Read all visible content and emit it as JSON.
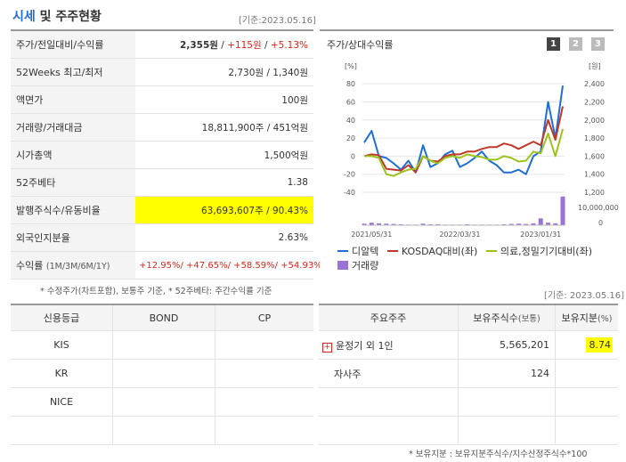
{
  "header": {
    "title_accent": "시세",
    "title_rest": " 및 주주현황",
    "date": "[기준:2023.05.16]"
  },
  "info": {
    "price_label": "주가/전일대비/수익률",
    "price": "2,355원",
    "sep1": " / ",
    "change": "+115원",
    "sep2": " / ",
    "change_rate": "+5.13%",
    "w52_label": "52Weeks 최고/최저",
    "w52_value": "2,730원 / 1,340원",
    "par_label": "액면가",
    "par_value": "100원",
    "volume_label": "거래량/거래대금",
    "volume_value": "18,811,900주 / 451억원",
    "mcap_label": "시가총액",
    "mcap_value": "1,500억원",
    "beta_label": "52주베타",
    "beta_value": "1.38",
    "shares_label": "발행주식수/유동비율",
    "shares_value": "63,693,607주 / 90.43%",
    "foreign_label": "외국인지분율",
    "foreign_value": "2.63%",
    "return_label": "수익률",
    "return_sub": "(1M/3M/6M/1Y)",
    "return_value": "+12.95%/ +47.65%/ +58.59%/ +54.93%"
  },
  "note1": "* 수정주가(차트포함), 보통주 기준, * 52주베타: 주간수익률 기준",
  "chart_panel": {
    "title": "주가/상대수익률",
    "pages": [
      "1",
      "2",
      "3"
    ],
    "active_page": "1"
  },
  "chart_data": {
    "type": "line",
    "x_ticks": [
      "2021/05/31",
      "2022/03/31",
      "2023/01/31"
    ],
    "y_left_unit": "[%]",
    "y_left_ticks": [
      "80",
      "60",
      "40",
      "20",
      "0",
      "-20",
      "-40"
    ],
    "y_right_unit": "[원]",
    "y_right_ticks": [
      "2,400",
      "2,200",
      "2,000",
      "1,800",
      "1,600",
      "1,400",
      "1,200"
    ],
    "volume_axis_label": "10,000,000",
    "volume_axis_zero": "0",
    "ylim_left": [
      -40,
      90
    ],
    "series": [
      {
        "name": "디알텍",
        "color": "#1f6ed4",
        "values": [
          15,
          28,
          0,
          -2,
          -8,
          -15,
          -5,
          -18,
          12,
          -12,
          -8,
          2,
          6,
          -12,
          -8,
          -2,
          5,
          -5,
          -10,
          -18,
          -18,
          -15,
          -20,
          0,
          5,
          60,
          20,
          78
        ]
      },
      {
        "name": "KOSDAQ대비(좌)",
        "color": "#c0392b",
        "values": [
          0,
          2,
          1,
          -14,
          -15,
          -16,
          -10,
          -18,
          0,
          -5,
          -6,
          0,
          2,
          2,
          5,
          5,
          8,
          10,
          10,
          14,
          12,
          8,
          12,
          16,
          12,
          40,
          18,
          55
        ]
      },
      {
        "name": "의료,정밀기기대비(좌)",
        "color": "#9bc31b",
        "values": [
          0,
          0,
          -2,
          -20,
          -22,
          -18,
          -15,
          -14,
          0,
          -5,
          -8,
          -2,
          0,
          -2,
          2,
          0,
          -1,
          -4,
          -4,
          0,
          -2,
          -6,
          -5,
          5,
          3,
          25,
          0,
          30
        ]
      }
    ],
    "volume": {
      "name": "거래량",
      "color": "#9b72d6",
      "values": [
        0.05,
        0.08,
        0.06,
        0.05,
        0.04,
        0.03,
        0.02,
        0.02,
        0.05,
        0.03,
        0.03,
        0.02,
        0.02,
        0.02,
        0.03,
        0.02,
        0.02,
        0.02,
        0.02,
        0.03,
        0.04,
        0.05,
        0.04,
        0.06,
        0.22,
        0.08,
        0.06,
        0.92
      ]
    }
  },
  "chart_legend": [
    "디알텍",
    "KOSDAQ대비(좌)",
    "의료,정밀기기대비(좌)",
    "거래량"
  ],
  "date2": "[기준: 2023.05.16]",
  "credit": {
    "headers": [
      "신용등급",
      "BOND",
      "CP"
    ],
    "rows": [
      [
        "KIS",
        "",
        ""
      ],
      [
        "KR",
        "",
        ""
      ],
      [
        "NICE",
        "",
        ""
      ],
      [
        "",
        "",
        ""
      ]
    ]
  },
  "major": {
    "h1": "주요주주",
    "h2": "보유주식수",
    "h2u": "(보통)",
    "h3": "보유지분",
    "h3u": "(%)",
    "rows": [
      {
        "name": "윤정기 외 1인",
        "shares": "5,565,201",
        "pct": "8.74"
      },
      {
        "name": "자사주",
        "shares": "124",
        "pct": ""
      },
      {
        "name": "",
        "shares": "",
        "pct": ""
      },
      {
        "name": "",
        "shares": "",
        "pct": ""
      }
    ]
  },
  "note2": "* 보유지분 : 보유지분주식수/지수산정주식수*100"
}
